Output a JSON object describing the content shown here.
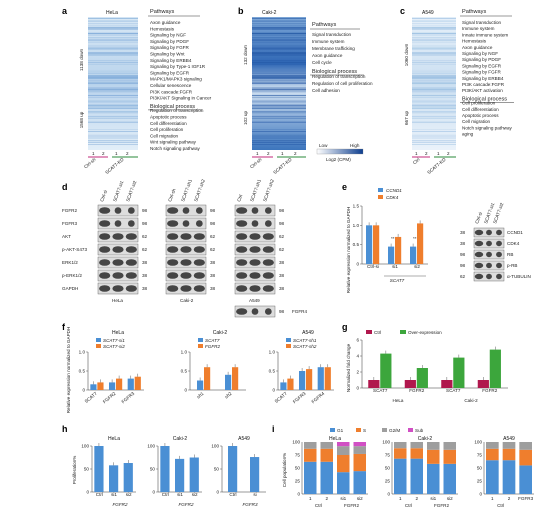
{
  "panels": {
    "a": {
      "letter": "a",
      "title": "HeLa",
      "side_top": "1138 down",
      "side_bottom": "1568 up",
      "cols": [
        "1",
        "2",
        "1",
        "2"
      ],
      "groups": [
        "Ctrl-sh",
        "SCAT7-KD"
      ],
      "header": "Pathways",
      "items": [
        "Axon guidance",
        "Hemostasis",
        "Signaling by NGF",
        "Signaling by PDGF",
        "Signaling by FGFR",
        "Signaling by Wnt",
        "Signaling by ERBB4",
        "Signaling by Type-1 IGF1R",
        "Signaling by EGFR",
        "MAPK1/MAPK3 signaling",
        "Cellular senescence",
        "PI3K cascade:FGFR",
        "PI3K/AKT Signaling in Cancer",
        "Biological process",
        "Regulation of transcription",
        "Apoptotic process",
        "Cell differentiation",
        "Cell proliferation",
        "Cell migration",
        "Wnt signaling pathway",
        "Notch signaling pathway"
      ]
    },
    "b": {
      "letter": "b",
      "title": "Caki-2",
      "side_top": "132 down",
      "side_bottom": "102 up",
      "cols": [
        "1",
        "2",
        "1",
        "2"
      ],
      "groups": [
        "Ctrl-sh",
        "SCAT7-KD"
      ],
      "header": "Pathways",
      "items": [
        "Signal transduction",
        "Immune system",
        "Membrane trafficking",
        "Axon guidance",
        "Cell cycle",
        "Biological process",
        "Regulation of transcription",
        "Regulation of cell proliferation",
        "Cell adhesion"
      ],
      "legend_low": "Low",
      "legend_high": "High",
      "legend_title": "Log2 (CPM)"
    },
    "c": {
      "letter": "c",
      "title": "A549",
      "side_top": "1060 down",
      "side_bottom": "667 up",
      "cols": [
        "1",
        "2",
        "1",
        "2"
      ],
      "groups": [
        "Ctrl",
        "SCAT7-KD"
      ],
      "header": "Pathways",
      "items": [
        "Signal transduction",
        "Immune system",
        "Innate immune system",
        "Hemostasis",
        "Axon guidance",
        "Signaling by NGF",
        "Signaling by PDGF",
        "Signaling by EGFR",
        "Signaling by FGFR",
        "Signaling by ERBB4",
        "PI3K cascade:FGFR",
        "PI3K/AKT activation",
        "Biological process",
        "Cell proliferation",
        "Cell differentiation",
        "Apoptotic process",
        "Cell migration",
        "Notch signaling pathway",
        "aging"
      ]
    },
    "d": {
      "letter": "d",
      "lanes1": [
        "Ctrl-si",
        "SCAT7-si1",
        "SCAT7-si2"
      ],
      "lanes2": [
        "Ctrl-sh",
        "SCAT7-sh1",
        "SCAT7-sh2"
      ],
      "lanes3": [
        "Ctrl",
        "SCAT7-sh1",
        "SCAT7-sh2"
      ],
      "rows": [
        "FGFR2",
        "FGFR3",
        "AKT",
        "p-AKT-S473",
        "ERK1/2",
        "p-ERK1/2",
        "GAPDH"
      ],
      "mw1": [
        "98",
        "98",
        "62",
        "62",
        "38",
        "38",
        "38"
      ],
      "mw2": [
        "98",
        "98",
        "62",
        "62",
        "38",
        "38",
        "38"
      ],
      "mw3": [
        "98",
        "98",
        "62",
        "62",
        "38",
        "38",
        "38",
        "98"
      ],
      "extra_row": "FGFR4",
      "cells": [
        "HeLa",
        "Caki-2",
        "A549"
      ]
    },
    "e": {
      "letter": "e",
      "legend": [
        "CCND1",
        "CDK4"
      ],
      "colors": [
        "#4a8fd4",
        "#ef7e2d"
      ],
      "ylabel": "Relative expression normalized to GAPDH",
      "categories": [
        "Ctrl-si",
        "si1",
        "si2"
      ],
      "group": "SCAT7",
      "yticks": [
        "0",
        "0.5",
        "1.0",
        "1.5"
      ],
      "stars": [
        "",
        "**",
        "**"
      ],
      "blot_lanes": [
        "Ctrl-si",
        "SCAT7-si1",
        "SCAT7-si2"
      ],
      "blot_rows": [
        "CCND1",
        "CDK4",
        "RB",
        "p-RB",
        "α-TUBULIN"
      ],
      "blot_mw": [
        "38",
        "38",
        "98",
        "98",
        "62"
      ]
    },
    "f": {
      "letter": "f",
      "titles": [
        "HeLa",
        "Caki-2",
        "A549"
      ],
      "ylabel": "Relative expression normalized to GAPDH",
      "legends": [
        [
          "SCAT7-si1",
          "SCAT7-si2"
        ],
        [
          "SCAT7",
          "FGFR2"
        ],
        [
          "SCAT7-sh1",
          "SCAT7-sh2"
        ]
      ],
      "cats1": [
        "SCAT7",
        "FGFR2",
        "FGFR3"
      ],
      "cats2": [
        "sh1",
        "sh2"
      ],
      "cats3": [
        "SCAT7",
        "FGFR3",
        "FGFR4"
      ],
      "yticks1": [
        "0",
        "0.5",
        "1.0"
      ],
      "yticks2": [
        "0",
        "0.5",
        "1.0"
      ],
      "yticks3": [
        "0",
        "0.5",
        "1.0"
      ]
    },
    "g": {
      "letter": "g",
      "legend": [
        "Ctrl",
        "Over-expression"
      ],
      "ylabel": "Normalized fold change",
      "categories": [
        "SCAT7",
        "FGFR2",
        "SCAT7",
        "FGFR2"
      ],
      "groups": [
        "HeLa",
        "Caki-2"
      ],
      "yticks": [
        "0",
        "2",
        "4",
        "6"
      ]
    },
    "h": {
      "letter": "h",
      "titles": [
        "HeLa",
        "Caki-2",
        "A549"
      ],
      "ylabel": "Proliferation%",
      "cats1": [
        "Ctrl",
        "si1",
        "si2"
      ],
      "group1": "FGFR2",
      "cats2": [
        "Ctrl",
        "si1",
        "si2"
      ],
      "group2": "FGFR2",
      "cats3": [
        "Ctrl",
        "si"
      ],
      "group3": "FGFR3",
      "yticks": [
        "0",
        "50",
        "100"
      ]
    },
    "i": {
      "letter": "i",
      "legend": [
        "G1",
        "S",
        "G2/M",
        "Sub"
      ],
      "colors": [
        "#4a8fd4",
        "#ef7e2d",
        "#9e9e9e",
        "#d14fc4"
      ],
      "ylabel": "Cell population%",
      "titles": [
        "HeLa",
        "Caki-2",
        "A549"
      ],
      "cats1": [
        "1",
        "2",
        "si1",
        "si2"
      ],
      "groups1": [
        "Ctrl",
        "FGFR2"
      ],
      "cats2": [
        "1",
        "2",
        "si1",
        "si2"
      ],
      "groups2": [
        "Ctrl",
        "FGFR2"
      ],
      "cats3": [
        "1",
        "2",
        "FGFR3"
      ],
      "groups3": [
        "Ctrl"
      ],
      "yticks": [
        "0",
        "25",
        "50",
        "75",
        "100"
      ]
    }
  },
  "chart_data": [
    {
      "type": "bar",
      "id": "e",
      "categories": [
        "Ctrl-si",
        "si1",
        "si2"
      ],
      "series": [
        {
          "name": "CCND1",
          "values": [
            1.0,
            0.45,
            0.45
          ]
        },
        {
          "name": "CDK4",
          "values": [
            1.0,
            0.7,
            1.05
          ]
        }
      ],
      "ylim": [
        0,
        1.5
      ]
    },
    {
      "type": "bar",
      "id": "f1",
      "title": "HeLa",
      "categories": [
        "SCAT7",
        "FGFR2",
        "FGFR3"
      ],
      "series": [
        {
          "name": "SCAT7-si1",
          "values": [
            0.15,
            0.2,
            0.3
          ]
        },
        {
          "name": "SCAT7-si2",
          "values": [
            0.2,
            0.3,
            0.35
          ]
        }
      ],
      "ylim": [
        0,
        1.0
      ]
    },
    {
      "type": "bar",
      "id": "f2",
      "title": "Caki-2",
      "categories": [
        "sh1",
        "sh2"
      ],
      "series": [
        {
          "name": "SCAT7",
          "values": [
            0.25,
            0.4
          ]
        },
        {
          "name": "FGFR2",
          "values": [
            0.6,
            0.6
          ]
        }
      ],
      "ylim": [
        0,
        1.0
      ]
    },
    {
      "type": "bar",
      "id": "f3",
      "title": "A549",
      "categories": [
        "SCAT7",
        "FGFR3",
        "FGFR4"
      ],
      "series": [
        {
          "name": "SCAT7-sh1",
          "values": [
            0.2,
            0.5,
            0.6
          ]
        },
        {
          "name": "SCAT7-sh2",
          "values": [
            0.3,
            0.55,
            0.6
          ]
        }
      ],
      "ylim": [
        0,
        1.0
      ]
    },
    {
      "type": "bar",
      "id": "g",
      "categories": [
        "SCAT7",
        "FGFR2",
        "SCAT7",
        "FGFR2"
      ],
      "series": [
        {
          "name": "Ctrl",
          "values": [
            1,
            1,
            1,
            1
          ]
        },
        {
          "name": "Over-expression",
          "values": [
            4.3,
            2.5,
            3.8,
            4.8
          ]
        }
      ],
      "ylim": [
        0,
        6
      ]
    },
    {
      "type": "bar",
      "id": "h1",
      "title": "HeLa",
      "categories": [
        "Ctrl",
        "si1",
        "si2"
      ],
      "values": [
        100,
        58,
        63
      ],
      "ylim": [
        0,
        100
      ]
    },
    {
      "type": "bar",
      "id": "h2",
      "title": "Caki-2",
      "categories": [
        "Ctrl",
        "si1",
        "si2"
      ],
      "values": [
        100,
        72,
        75
      ],
      "ylim": [
        0,
        100
      ]
    },
    {
      "type": "bar",
      "id": "h3",
      "title": "A549",
      "categories": [
        "Ctrl",
        "si"
      ],
      "values": [
        100,
        76
      ],
      "ylim": [
        0,
        100
      ]
    },
    {
      "type": "bar",
      "id": "i1",
      "title": "HeLa",
      "categories": [
        "1",
        "2",
        "si1",
        "si2"
      ],
      "series": [
        {
          "name": "G1",
          "values": [
            62,
            62,
            42,
            44
          ]
        },
        {
          "name": "S",
          "values": [
            25,
            25,
            33,
            33
          ]
        },
        {
          "name": "G2/M",
          "values": [
            13,
            13,
            17,
            15
          ]
        },
        {
          "name": "Sub",
          "values": [
            0,
            0,
            8,
            8
          ]
        }
      ],
      "ylim": [
        0,
        100
      ]
    },
    {
      "type": "bar",
      "id": "i2",
      "title": "Caki-2",
      "categories": [
        "1",
        "2",
        "si1",
        "si2"
      ],
      "series": [
        {
          "name": "G1",
          "values": [
            68,
            68,
            58,
            58
          ]
        },
        {
          "name": "S",
          "values": [
            20,
            20,
            27,
            27
          ]
        },
        {
          "name": "G2/M",
          "values": [
            12,
            12,
            15,
            15
          ]
        },
        {
          "name": "Sub",
          "values": [
            0,
            0,
            0,
            0
          ]
        }
      ],
      "ylim": [
        0,
        100
      ]
    },
    {
      "type": "bar",
      "id": "i3",
      "title": "A549",
      "categories": [
        "1",
        "2",
        "FGFR3"
      ],
      "series": [
        {
          "name": "G1",
          "values": [
            65,
            65,
            55
          ]
        },
        {
          "name": "S",
          "values": [
            22,
            22,
            30
          ]
        },
        {
          "name": "G2/M",
          "values": [
            13,
            13,
            15
          ]
        },
        {
          "name": "Sub",
          "values": [
            0,
            0,
            0
          ]
        }
      ],
      "ylim": [
        0,
        100
      ]
    }
  ]
}
